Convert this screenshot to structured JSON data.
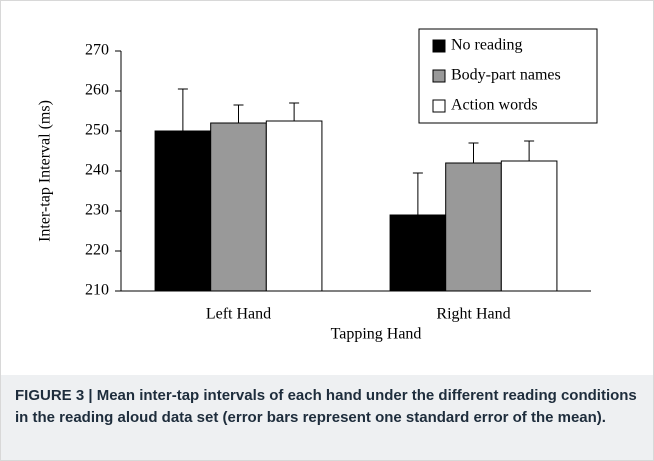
{
  "chart_data": {
    "type": "bar",
    "y_label": "Inter-tap Interval (ms)",
    "x_label": "Tapping Hand",
    "categories": [
      "Left Hand",
      "Right Hand"
    ],
    "series": [
      {
        "name": "No reading",
        "color": "#000000",
        "values": [
          250,
          229
        ],
        "errors": [
          10.5,
          10.5
        ]
      },
      {
        "name": "Body-part names",
        "color": "#999999",
        "values": [
          252,
          242
        ],
        "errors": [
          4.5,
          5
        ]
      },
      {
        "name": "Action words",
        "color": "#ffffff",
        "values": [
          252.5,
          242.5
        ],
        "errors": [
          4.5,
          5
        ]
      }
    ],
    "ylim": [
      210,
      270
    ],
    "yticks": [
      210,
      220,
      230,
      240,
      250,
      260,
      270
    ],
    "legend": "upper right"
  },
  "caption": "FIGURE 3 | Mean inter-tap intervals of each hand under the different reading conditions in the reading aloud data set (error bars represent one standard error of the mean)."
}
